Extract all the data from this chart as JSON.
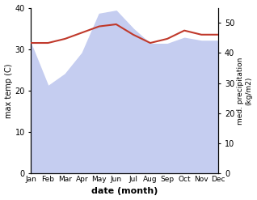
{
  "months": [
    "Jan",
    "Feb",
    "Mar",
    "Apr",
    "May",
    "Jun",
    "Jul",
    "Aug",
    "Sep",
    "Oct",
    "Nov",
    "Dec"
  ],
  "temp_max": [
    31.5,
    31.5,
    32.5,
    34.0,
    35.5,
    36.0,
    33.5,
    31.5,
    32.5,
    34.5,
    33.5,
    33.5
  ],
  "precipitation": [
    43.0,
    29.0,
    33.0,
    40.0,
    53.0,
    54.0,
    48.0,
    43.0,
    43.0,
    45.0,
    44.0,
    44.0
  ],
  "temp_color": "#c0392b",
  "precip_fill_color": "#c5cdf0",
  "temp_ylim": [
    0,
    40
  ],
  "precip_ylim": [
    0,
    55
  ],
  "temp_yticks": [
    0,
    10,
    20,
    30,
    40
  ],
  "precip_yticks": [
    0,
    10,
    20,
    30,
    40,
    50
  ],
  "xlabel": "date (month)",
  "ylabel_left": "max temp (C)",
  "ylabel_right": "med. precipitation\n(kg/m2)",
  "background_color": "#ffffff",
  "fig_width": 3.18,
  "fig_height": 2.47,
  "dpi": 100
}
